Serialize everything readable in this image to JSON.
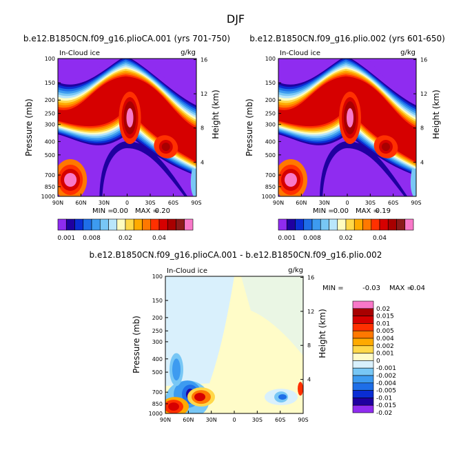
{
  "figure_title": "DJF",
  "colors": {
    "levels_top": [
      "#8f2cf0",
      "#1f00a0",
      "#0a2dd4",
      "#1e6ee8",
      "#3d9bf0",
      "#78c7f5",
      "#b9e6fb",
      "#fffcc0",
      "#ffd84a",
      "#ffaa00",
      "#ff7800",
      "#ff3000",
      "#d60000",
      "#a80000",
      "#8b1a1a",
      "#f878c8"
    ],
    "levels_diff": [
      "#8f2cf0",
      "#1f00a0",
      "#0a2dd4",
      "#1e6ee8",
      "#3d9bf0",
      "#78c7f5",
      "#d9f0fc",
      "#fffcc8",
      "#ffd84a",
      "#ffaa00",
      "#ff7800",
      "#ff3000",
      "#d60000",
      "#a80000",
      "#f878c8"
    ]
  },
  "chart_data": [
    {
      "type": "heatmap",
      "title": "b.e12.B1850CN.f09_g16.plioCA.001 (yrs 701-750)",
      "left_label": "In-Cloud ice",
      "right_label": "g/kg",
      "xlabel": "",
      "ylabel": "Pressure (mb)",
      "y2label": "Height (km)",
      "x_ticks": [
        "90N",
        "60N",
        "30N",
        "0",
        "30S",
        "60S",
        "90S"
      ],
      "y_ticks": [
        "100",
        "150",
        "200",
        "250",
        "300",
        "400",
        "500",
        "700",
        "850",
        "1000"
      ],
      "y2_ticks": [
        "16",
        "12",
        "8",
        "4"
      ],
      "stats": {
        "min_label": "MIN =",
        "min": "0.00",
        "max_label": "MAX =",
        "max": "0.20"
      },
      "colorbar_labels": [
        "0.001",
        "0.008",
        "0.02",
        "0.04"
      ]
    },
    {
      "type": "heatmap",
      "title": "b.e12.B1850CN.f09_g16.plio.002 (yrs 601-650)",
      "left_label": "In-Cloud ice",
      "right_label": "g/kg",
      "xlabel": "",
      "ylabel": "Pressure (mb)",
      "y2label": "Height (km)",
      "x_ticks": [
        "90N",
        "60N",
        "30N",
        "0",
        "30S",
        "60S",
        "90S"
      ],
      "y_ticks": [
        "100",
        "150",
        "200",
        "250",
        "300",
        "400",
        "500",
        "700",
        "850",
        "1000"
      ],
      "y2_ticks": [
        "16",
        "12",
        "8",
        "4"
      ],
      "stats": {
        "min_label": "MIN =",
        "min": "0.00",
        "max_label": "MAX =",
        "max": "0.19"
      },
      "colorbar_labels": [
        "0.001",
        "0.008",
        "0.02",
        "0.04"
      ]
    },
    {
      "type": "heatmap",
      "title": "b.e12.B1850CN.f09_g16.plioCA.001 - b.e12.B1850CN.f09_g16.plio.002",
      "left_label": "In-Cloud ice",
      "right_label": "g/kg",
      "xlabel": "",
      "ylabel": "Pressure (mb)",
      "y2label": "Height (km)",
      "x_ticks": [
        "90N",
        "60N",
        "30N",
        "0",
        "30S",
        "60S",
        "90S"
      ],
      "y_ticks": [
        "100",
        "150",
        "200",
        "250",
        "300",
        "400",
        "500",
        "700",
        "850",
        "1000"
      ],
      "y2_ticks": [
        "16",
        "12",
        "8",
        "4"
      ],
      "stats": {
        "min_label": "MIN =",
        "min": "-0.03",
        "max_label": "MAX =",
        "max": "0.04"
      },
      "colorbar_labels": [
        "0.02",
        "0.015",
        "0.01",
        "0.005",
        "0.004",
        "0.002",
        "0.001",
        "0",
        "-0.001",
        "-0.002",
        "-0.004",
        "-0.005",
        "-0.01",
        "-0.015",
        "-0.02"
      ]
    }
  ]
}
